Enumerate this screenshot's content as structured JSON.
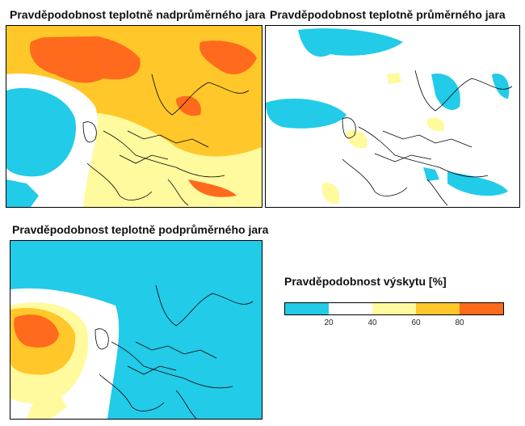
{
  "maps": [
    {
      "title": "Pravděpodobnost teplotně nadprůměrného jara"
    },
    {
      "title": "Pravděpodobnost teplotně průměrného jara"
    },
    {
      "title": "Pravděpodobnost teplotně podprůměrného jara"
    }
  ],
  "legend": {
    "title": "Pravděpodobnost výskytu [%]",
    "ticks": [
      "20",
      "40",
      "60",
      "80"
    ],
    "colors": [
      "#22cbe8",
      "#ffffff",
      "#fffa9e",
      "#ffc72a",
      "#ff6a1c"
    ]
  }
}
